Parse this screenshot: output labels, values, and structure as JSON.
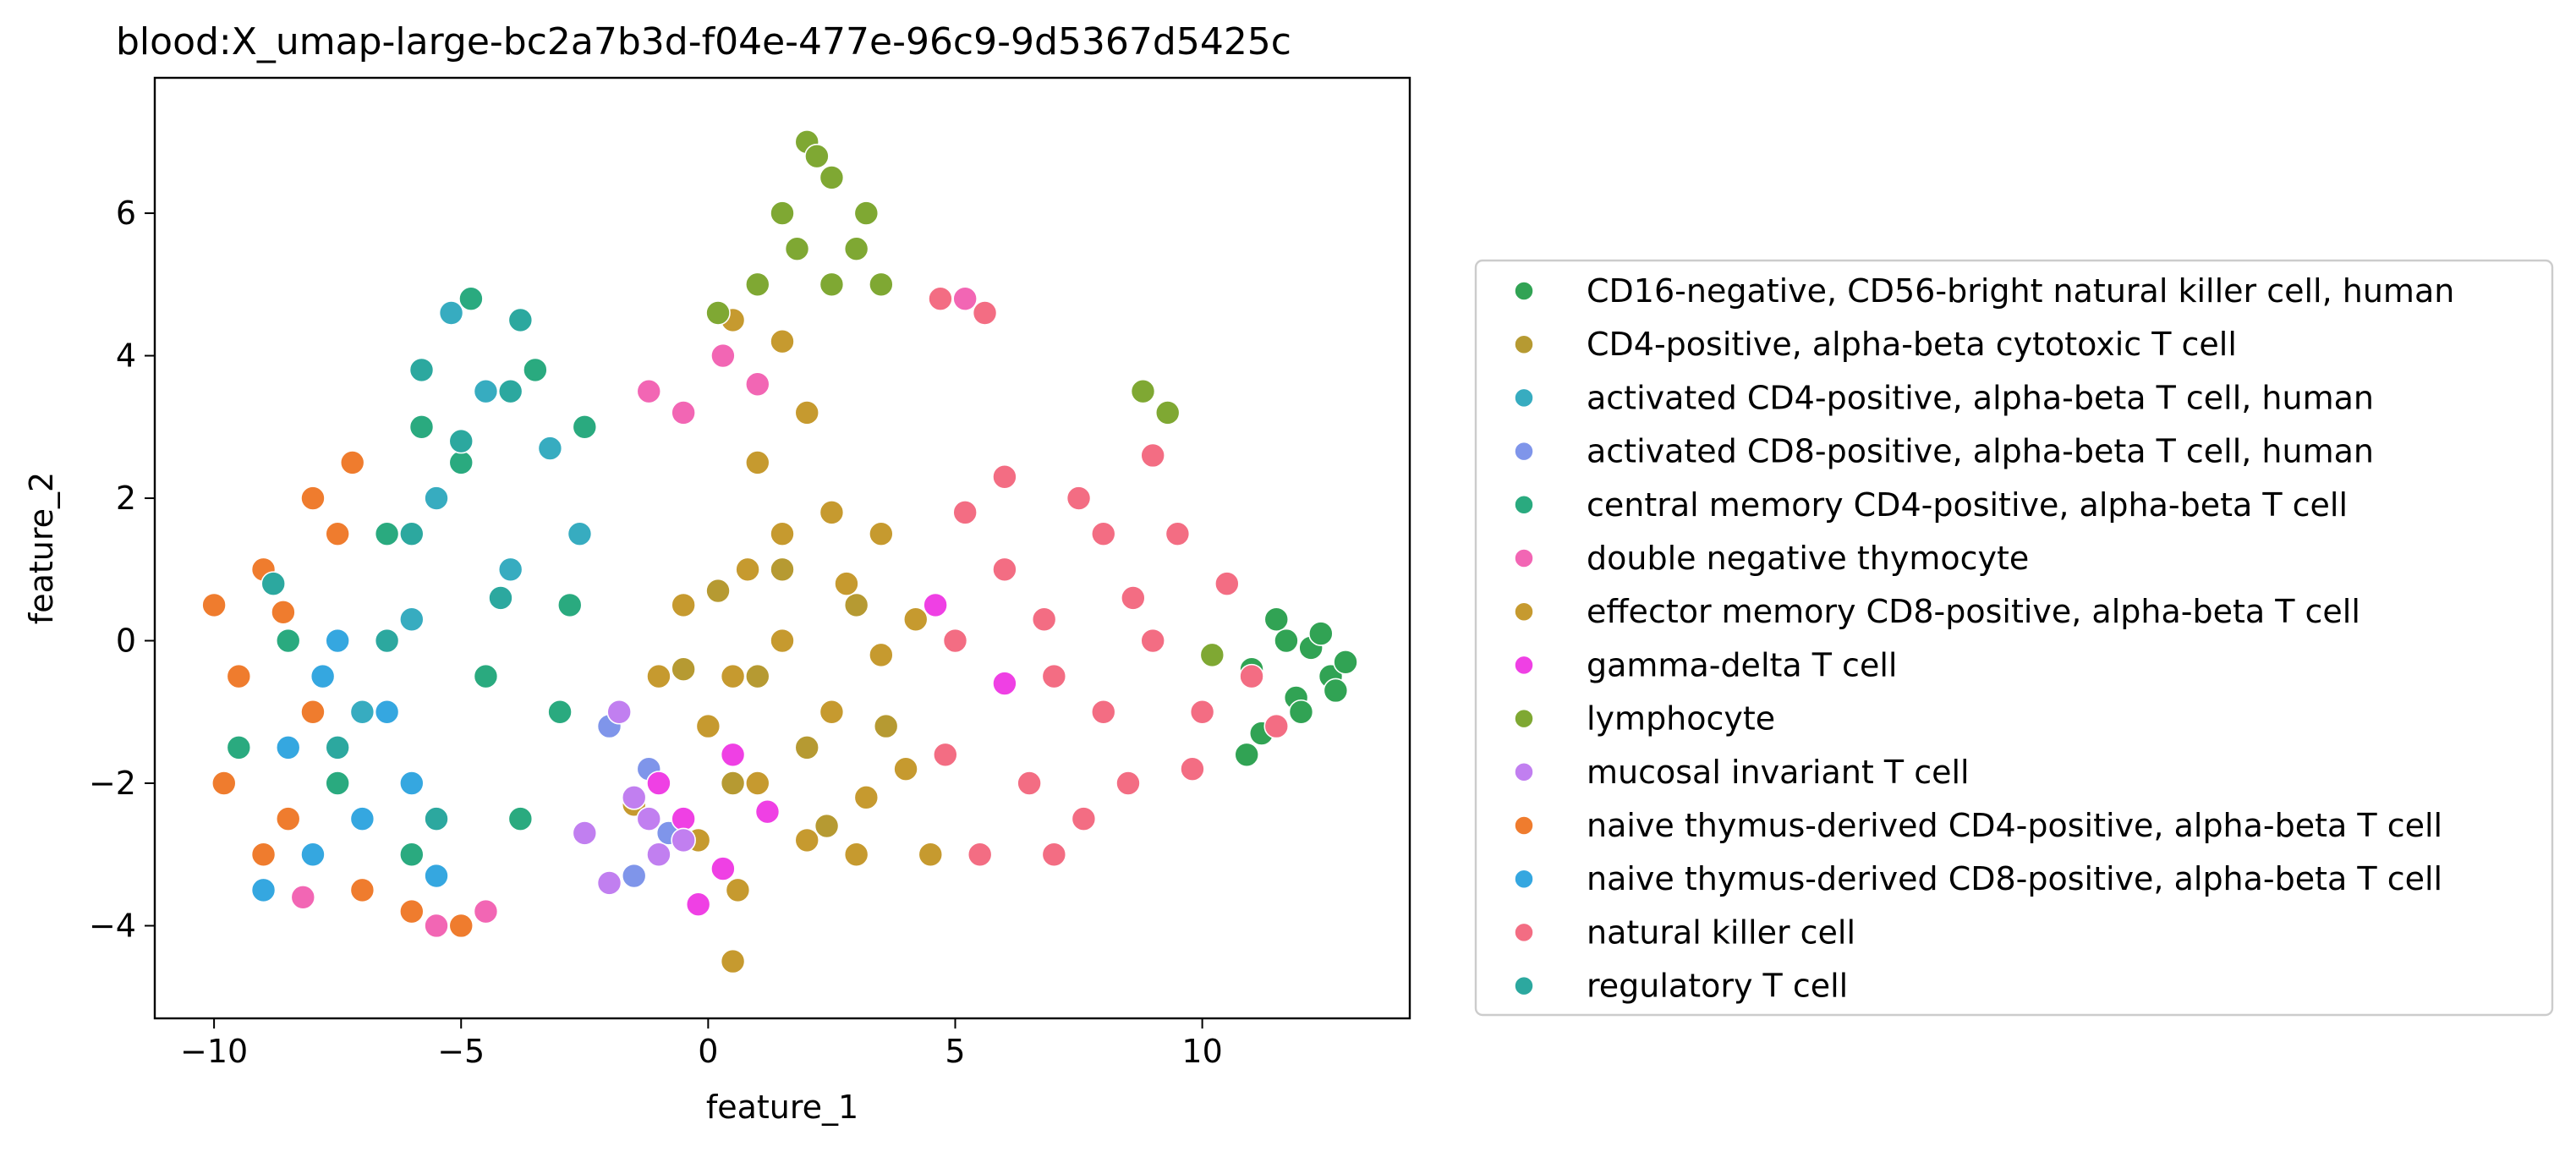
{
  "chart_data": {
    "type": "scatter",
    "title": "blood:X_umap-large-bc2a7b3d-f04e-477e-96c9-9d5367d5425c",
    "xlabel": "feature_1",
    "ylabel": "feature_2",
    "xlim": [
      -11.2,
      14.2
    ],
    "ylim": [
      -5.3,
      7.9
    ],
    "xticks": [
      -10,
      -5,
      0,
      5,
      10
    ],
    "xtick_labels": [
      "−10",
      "−5",
      "0",
      "5",
      "10"
    ],
    "yticks": [
      -4,
      -2,
      0,
      2,
      4,
      6
    ],
    "ytick_labels": [
      "−4",
      "−2",
      "0",
      "2",
      "4",
      "6"
    ],
    "grid": false,
    "legend_position": "outside-right",
    "series": [
      {
        "name": "CD16-negative, CD56-bright natural killer cell, human",
        "color": "#31a354",
        "points": [
          [
            12.6,
            -0.5
          ],
          [
            12.2,
            -0.1
          ],
          [
            11.9,
            -0.8
          ],
          [
            12.9,
            -0.3
          ],
          [
            11.5,
            0.3
          ],
          [
            12.4,
            0.1
          ],
          [
            11.2,
            -1.3
          ],
          [
            12.0,
            -1.0
          ],
          [
            11.0,
            -0.4
          ],
          [
            12.7,
            -0.7
          ],
          [
            10.9,
            -1.6
          ],
          [
            11.7,
            0.0
          ]
        ]
      },
      {
        "name": "CD4-positive, alpha-beta cytotoxic T cell",
        "color": "#b69a32",
        "points": [
          [
            1.0,
            -0.5
          ],
          [
            2.0,
            -1.5
          ],
          [
            0.5,
            -2.0
          ],
          [
            3.0,
            0.5
          ],
          [
            2.4,
            -2.6
          ],
          [
            1.5,
            1.0
          ],
          [
            -0.5,
            -0.4
          ],
          [
            3.6,
            -1.2
          ],
          [
            0.2,
            0.7
          ]
        ]
      },
      {
        "name": "activated CD4-positive, alpha-beta T cell, human",
        "color": "#37acc0",
        "points": [
          [
            -4.5,
            3.5
          ],
          [
            -5.5,
            2.0
          ],
          [
            -3.2,
            2.7
          ],
          [
            -6.0,
            0.3
          ],
          [
            -4.0,
            1.0
          ],
          [
            -7.0,
            -1.0
          ],
          [
            -2.6,
            1.5
          ],
          [
            -5.2,
            4.6
          ]
        ]
      },
      {
        "name": "activated CD8-positive, alpha-beta T cell, human",
        "color": "#7f95ea",
        "points": [
          [
            -1.2,
            -1.8
          ],
          [
            -0.8,
            -2.7
          ],
          [
            -2.0,
            -1.2
          ],
          [
            -1.5,
            -3.3
          ]
        ]
      },
      {
        "name": "central memory CD4-positive, alpha-beta T cell",
        "color": "#2aaa7f",
        "points": [
          [
            -4.8,
            4.8
          ],
          [
            -3.5,
            3.8
          ],
          [
            -5.8,
            3.0
          ],
          [
            -2.8,
            0.5
          ],
          [
            -4.5,
            -0.5
          ],
          [
            -6.5,
            1.5
          ],
          [
            -8.5,
            0.0
          ],
          [
            -9.5,
            -1.5
          ],
          [
            -3.8,
            -2.5
          ],
          [
            -6.0,
            -3.0
          ],
          [
            -5.0,
            2.5
          ],
          [
            -7.5,
            -2.0
          ],
          [
            -2.5,
            3.0
          ],
          [
            -3.0,
            -1.0
          ]
        ]
      },
      {
        "name": "double negative thymocyte",
        "color": "#f266b4",
        "points": [
          [
            -0.5,
            3.2
          ],
          [
            0.3,
            4.0
          ],
          [
            -1.2,
            3.5
          ],
          [
            1.0,
            3.6
          ],
          [
            -4.5,
            -3.8
          ],
          [
            -5.5,
            -4.0
          ],
          [
            5.2,
            4.8
          ],
          [
            -8.2,
            -3.6
          ]
        ]
      },
      {
        "name": "effector memory CD8-positive, alpha-beta T cell",
        "color": "#c69a2f",
        "points": [
          [
            0.5,
            -0.5
          ],
          [
            1.5,
            0.0
          ],
          [
            2.5,
            -1.0
          ],
          [
            3.5,
            -0.2
          ],
          [
            1.0,
            -2.0
          ],
          [
            2.0,
            -2.8
          ],
          [
            3.0,
            -3.0
          ],
          [
            4.0,
            -1.8
          ],
          [
            0.0,
            -1.2
          ],
          [
            1.5,
            1.5
          ],
          [
            2.5,
            1.8
          ],
          [
            3.5,
            1.5
          ],
          [
            -1.0,
            -0.5
          ],
          [
            -0.5,
            0.5
          ],
          [
            1.0,
            2.5
          ],
          [
            2.0,
            3.2
          ],
          [
            0.5,
            4.5
          ],
          [
            1.5,
            4.2
          ],
          [
            0.5,
            -4.5
          ],
          [
            0.6,
            -3.5
          ],
          [
            4.5,
            -3.0
          ],
          [
            3.2,
            -2.2
          ],
          [
            -0.2,
            -2.8
          ],
          [
            2.8,
            0.8
          ],
          [
            4.2,
            0.3
          ],
          [
            0.8,
            1.0
          ],
          [
            -1.5,
            -2.3
          ]
        ]
      },
      {
        "name": "gamma-delta T cell",
        "color": "#ef40e4",
        "points": [
          [
            -0.5,
            -2.5
          ],
          [
            0.3,
            -3.2
          ],
          [
            -1.0,
            -2.0
          ],
          [
            0.5,
            -1.6
          ],
          [
            1.2,
            -2.4
          ],
          [
            -0.2,
            -3.7
          ],
          [
            6.0,
            -0.6
          ],
          [
            4.6,
            0.5
          ]
        ]
      },
      {
        "name": "lymphocyte",
        "color": "#7fa833",
        "points": [
          [
            1.5,
            6.0
          ],
          [
            2.5,
            6.5
          ],
          [
            3.0,
            5.5
          ],
          [
            2.0,
            7.0
          ],
          [
            1.0,
            5.0
          ],
          [
            3.2,
            6.0
          ],
          [
            2.5,
            5.0
          ],
          [
            1.8,
            5.5
          ],
          [
            3.5,
            5.0
          ],
          [
            2.2,
            6.8
          ],
          [
            0.2,
            4.6
          ],
          [
            8.8,
            3.5
          ],
          [
            9.3,
            3.2
          ],
          [
            10.2,
            -0.2
          ]
        ]
      },
      {
        "name": "mucosal invariant T cell",
        "color": "#c17ff0",
        "points": [
          [
            -1.5,
            -2.2
          ],
          [
            -1.0,
            -3.0
          ],
          [
            -2.0,
            -3.4
          ],
          [
            -0.5,
            -2.8
          ],
          [
            -1.8,
            -1.0
          ],
          [
            -1.2,
            -2.5
          ],
          [
            -2.5,
            -2.7
          ]
        ]
      },
      {
        "name": "naive thymus-derived CD4-positive, alpha-beta T cell",
        "color": "#ef7c2e",
        "points": [
          [
            -9.0,
            1.0
          ],
          [
            -9.5,
            -0.5
          ],
          [
            -8.0,
            2.0
          ],
          [
            -10.0,
            0.5
          ],
          [
            -8.5,
            -2.5
          ],
          [
            -7.0,
            -3.5
          ],
          [
            -9.0,
            -3.0
          ],
          [
            -7.5,
            1.5
          ],
          [
            -6.0,
            -3.8
          ],
          [
            -5.0,
            -4.0
          ],
          [
            -8.0,
            -1.0
          ],
          [
            -9.8,
            -2.0
          ],
          [
            -8.6,
            0.4
          ],
          [
            -7.2,
            2.5
          ]
        ]
      },
      {
        "name": "naive thymus-derived CD8-positive, alpha-beta T cell",
        "color": "#35a7e0",
        "points": [
          [
            -7.5,
            0.0
          ],
          [
            -8.5,
            -1.5
          ],
          [
            -6.5,
            -1.0
          ],
          [
            -7.0,
            -2.5
          ],
          [
            -9.0,
            -3.5
          ],
          [
            -6.0,
            -2.0
          ],
          [
            -8.0,
            -3.0
          ],
          [
            -5.5,
            -3.3
          ],
          [
            -7.8,
            -0.5
          ]
        ]
      },
      {
        "name": "natural killer cell",
        "color": "#f36d83",
        "points": [
          [
            5.0,
            0.0
          ],
          [
            6.0,
            1.0
          ],
          [
            7.0,
            -0.5
          ],
          [
            8.0,
            1.5
          ],
          [
            9.0,
            0.0
          ],
          [
            10.0,
            -1.0
          ],
          [
            6.5,
            -2.0
          ],
          [
            8.5,
            -2.0
          ],
          [
            5.5,
            -3.0
          ],
          [
            7.5,
            2.0
          ],
          [
            9.5,
            1.5
          ],
          [
            11.0,
            -0.5
          ],
          [
            6.0,
            2.3
          ],
          [
            8.0,
            -1.0
          ],
          [
            10.5,
            0.8
          ],
          [
            7.0,
            -3.0
          ],
          [
            5.2,
            1.8
          ],
          [
            9.0,
            2.6
          ],
          [
            11.5,
            -1.2
          ],
          [
            6.8,
            0.3
          ],
          [
            4.8,
            -1.6
          ],
          [
            7.6,
            -2.5
          ],
          [
            9.8,
            -1.8
          ],
          [
            8.6,
            0.6
          ],
          [
            5.6,
            4.6
          ],
          [
            4.7,
            4.8
          ]
        ]
      },
      {
        "name": "regulatory T cell",
        "color": "#2ca89f",
        "points": [
          [
            -6.0,
            1.5
          ],
          [
            -5.0,
            2.8
          ],
          [
            -4.0,
            3.5
          ],
          [
            -6.5,
            0.0
          ],
          [
            -7.5,
            -1.5
          ],
          [
            -5.5,
            -2.5
          ],
          [
            -4.2,
            0.6
          ],
          [
            -3.8,
            4.5
          ],
          [
            -5.8,
            3.8
          ],
          [
            -8.8,
            0.8
          ]
        ]
      }
    ]
  }
}
